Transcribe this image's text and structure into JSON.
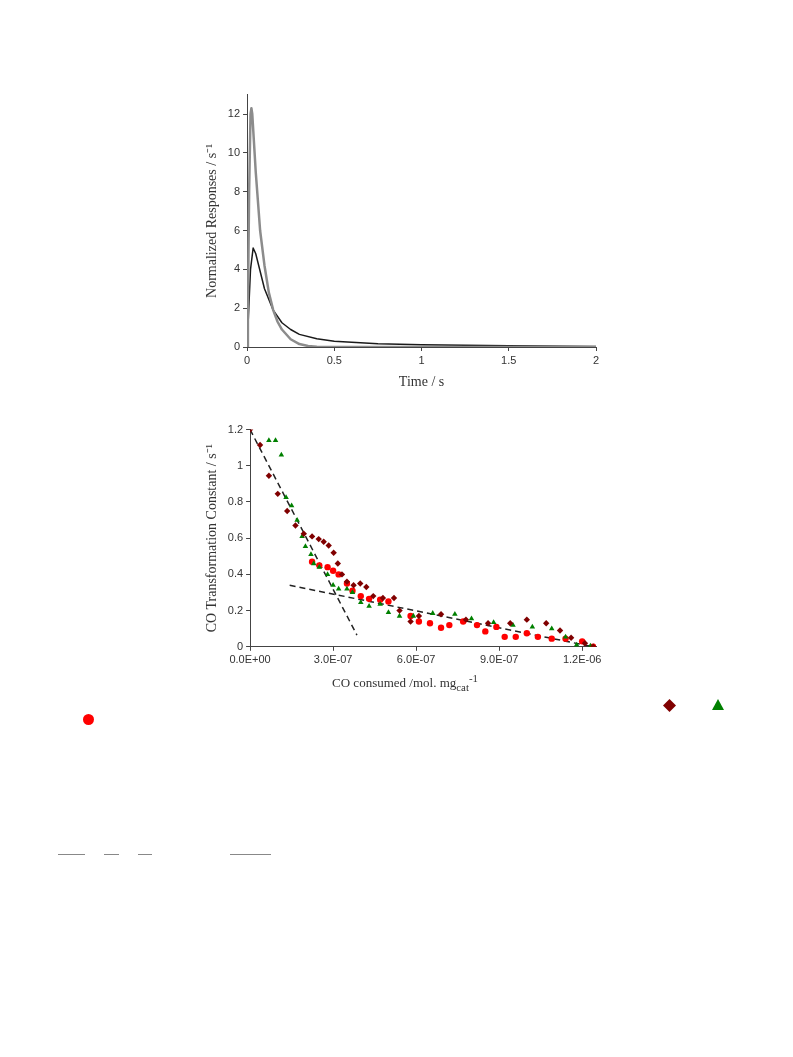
{
  "chart_data": [
    {
      "type": "line",
      "xlabel": "Time / s",
      "ylabel": "Normalized Responses / s⁻¹",
      "xlim": [
        0,
        2
      ],
      "ylim": [
        0,
        13
      ],
      "xticks": [
        0,
        0.5,
        1,
        1.5,
        2
      ],
      "yticks": [
        0,
        2,
        4,
        6,
        8,
        10,
        12
      ],
      "marker": "none",
      "line_style": "solid",
      "series": [
        {
          "color": "#8c8c8c",
          "x": [
            0,
            0.005,
            0.012,
            0.02,
            0.025,
            0.03,
            0.05,
            0.075,
            0.1,
            0.125,
            0.15,
            0.175,
            0.2,
            0.25,
            0.3,
            0.35,
            0.4,
            0.5,
            1,
            1.5,
            2
          ],
          "values": [
            0,
            2,
            8,
            12,
            12.3,
            12,
            9,
            6,
            4.2,
            2.8,
            1.9,
            1.3,
            0.9,
            0.4,
            0.15,
            0.05,
            0.01,
            0,
            0,
            0,
            0
          ]
        },
        {
          "color": "#1a1a1a",
          "x": [
            0,
            0.01,
            0.02,
            0.035,
            0.05,
            0.075,
            0.1,
            0.15,
            0.2,
            0.25,
            0.3,
            0.4,
            0.5,
            0.75,
            1,
            1.5,
            2
          ],
          "values": [
            0,
            2,
            4,
            5.1,
            4.8,
            3.9,
            3,
            1.9,
            1.25,
            0.9,
            0.65,
            0.42,
            0.3,
            0.17,
            0.12,
            0.06,
            0.02
          ]
        }
      ]
    },
    {
      "type": "scatter",
      "xlabel": "CO consumed /mol. mg$_{cat}$$^{-1}$",
      "ylabel": "CO Transformation Constant / s⁻¹",
      "xlim": [
        0,
        1.25e-06
      ],
      "ylim": [
        0,
        1.2
      ],
      "xticks": [
        {
          "value": 0,
          "label": "0.0E+00"
        },
        {
          "value": 3e-07,
          "label": "3.0E-07"
        },
        {
          "value": 6e-07,
          "label": "6.0E-07"
        },
        {
          "value": 9e-07,
          "label": "9.0E-07"
        },
        {
          "value": 1.2e-06,
          "label": "1.2E-06"
        }
      ],
      "yticks": [
        0,
        0.2,
        0.4,
        0.6,
        0.8,
        1,
        1.2
      ],
      "series": [
        {
          "color": "#800000",
          "marker": "diamond",
          "x": [
            0,
            3.6e-08,
            6.8e-08,
            1e-07,
            1.34e-07,
            1.64e-07,
            1.94e-07,
            2.24e-07,
            2.48e-07,
            2.66e-07,
            2.84e-07,
            3.02e-07,
            3.17e-07,
            3.32e-07,
            3.5e-07,
            3.74e-07,
            3.98e-07,
            4.2e-07,
            4.45e-07,
            4.8e-07,
            5.2e-07,
            5.4e-07,
            5.8e-07,
            6.1e-07,
            6.9e-07,
            7.8e-07,
            8.6e-07,
            9.4e-07,
            1e-06,
            1.07e-06,
            1.12e-06,
            1.16e-06,
            1.21e-06,
            1.24e-06
          ],
          "values": [
            1.2,
            1.115,
            0.945,
            0.845,
            0.75,
            0.67,
            0.625,
            0.61,
            0.595,
            0.58,
            0.56,
            0.52,
            0.46,
            0.4,
            0.36,
            0.34,
            0.35,
            0.33,
            0.28,
            0.27,
            0.27,
            0.2,
            0.14,
            0.17,
            0.18,
            0.15,
            0.13,
            0.13,
            0.15,
            0.13,
            0.09,
            0.05,
            0.02,
            0
          ]
        },
        {
          "color": "#008000",
          "marker": "triangle",
          "x": [
            6.8e-08,
            9.2e-08,
            1.13e-07,
            1.3e-07,
            1.5e-07,
            1.7e-07,
            1.88e-07,
            2e-07,
            2.2e-07,
            2.3e-07,
            2.5e-07,
            2.8e-07,
            3e-07,
            3.2e-07,
            3.5e-07,
            3.7e-07,
            4e-07,
            4.3e-07,
            4.7e-07,
            5e-07,
            5.4e-07,
            5.9e-07,
            6.6e-07,
            7.4e-07,
            8e-07,
            8.8e-07,
            9.5e-07,
            1.02e-06,
            1.09e-06,
            1.14e-06,
            1.18e-06,
            1.21e-06,
            1.23e-06
          ],
          "values": [
            1.14,
            1.14,
            1.06,
            0.825,
            0.78,
            0.7,
            0.61,
            0.555,
            0.51,
            0.46,
            0.44,
            0.4,
            0.34,
            0.32,
            0.32,
            0.3,
            0.245,
            0.225,
            0.235,
            0.19,
            0.17,
            0.17,
            0.185,
            0.18,
            0.155,
            0.135,
            0.12,
            0.11,
            0.1,
            0.055,
            0.01,
            null,
            0.005
          ]
        },
        {
          "color": "#ff0000",
          "marker": "circle",
          "x": [
            2.24e-07,
            2.5e-07,
            2.8e-07,
            3e-07,
            3.2e-07,
            3.5e-07,
            3.7e-07,
            4e-07,
            4.3e-07,
            4.7e-07,
            5e-07,
            5.4e-07,
            5.8e-07,
            6.1e-07,
            6.5e-07,
            6.9e-07,
            7.2e-07,
            7.7e-07,
            8.2e-07,
            8.5e-07,
            8.9e-07,
            9.2e-07,
            9.6e-07,
            1e-06,
            1.04e-06,
            1.09e-06,
            1.14e-06,
            1.2e-06,
            1.24e-06
          ],
          "values": [
            0.47,
            0.45,
            0.44,
            0.42,
            0.4,
            0.35,
            0.31,
            0.28,
            0.265,
            0.26,
            0.25,
            null,
            0.17,
            0.14,
            0.13,
            0.105,
            0.12,
            0.14,
            0.12,
            0.085,
            0.11,
            0.055,
            0.055,
            0.075,
            0.055,
            0.045,
            0.045,
            0.03,
            0
          ]
        },
        {
          "type": "line",
          "color": "#222222",
          "line_style": "dashed",
          "marker": "none",
          "x": [
            0,
            3.86e-07
          ],
          "values": [
            1.2,
            0.065
          ]
        },
        {
          "type": "line",
          "color": "#222222",
          "line_style": "dashed",
          "marker": "none",
          "x": [
            1.43e-07,
            1.24e-06
          ],
          "values": [
            0.34,
            0
          ]
        }
      ]
    }
  ]
}
